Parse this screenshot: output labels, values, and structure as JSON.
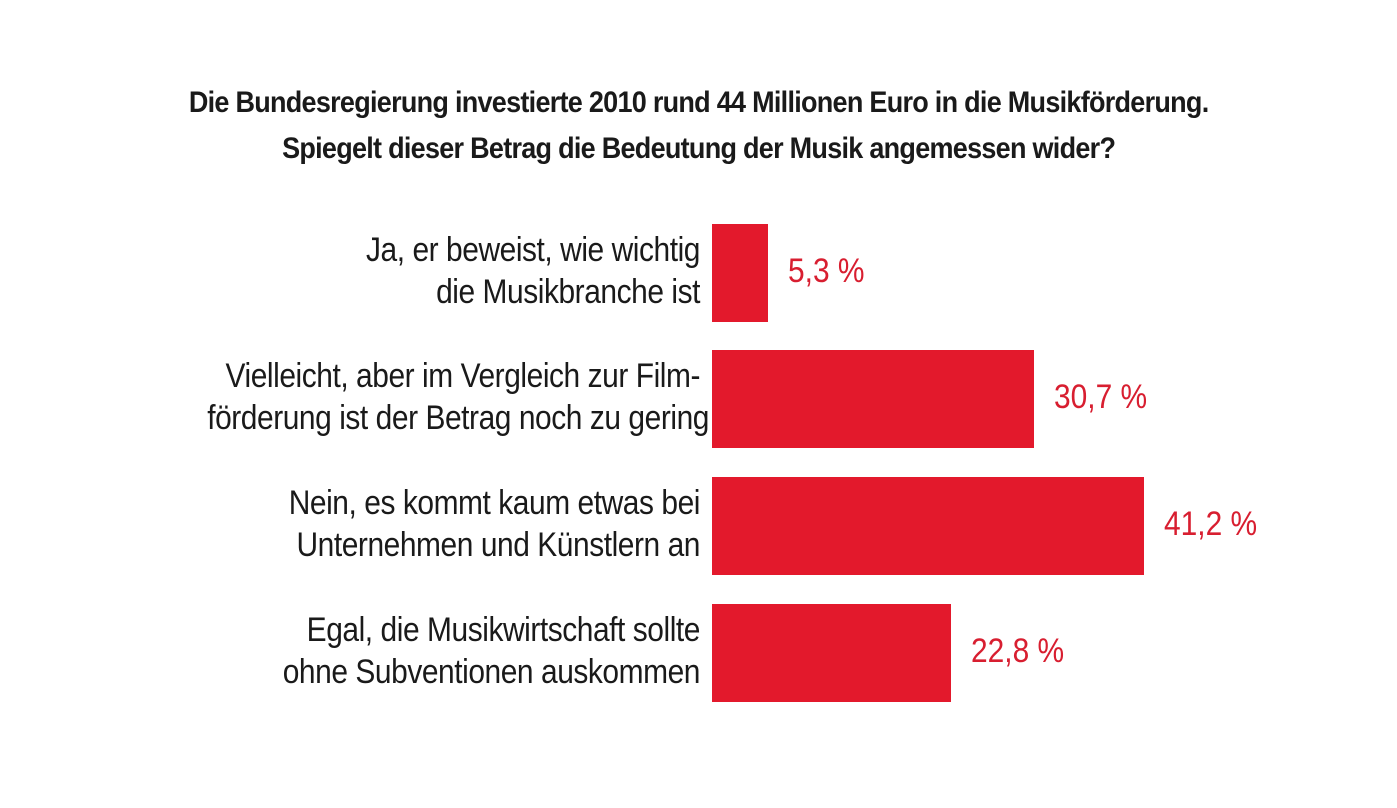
{
  "chart_data": {
    "type": "bar",
    "orientation": "horizontal",
    "title": [
      "Die Bundesregierung investierte 2010 rund 44 Millionen Euro in die Musikförderung.",
      "Spiegelt dieser Betrag die Bedeutung der Musik angemessen wider?"
    ],
    "categories": [
      [
        "Ja, er beweist, wie wichtig",
        "die Musikbranche ist"
      ],
      [
        "Vielleicht, aber im Vergleich zur Film-",
        "förderung ist der Betrag noch zu gering"
      ],
      [
        "Nein, es kommt kaum etwas bei",
        "Unternehmen und Künstlern an"
      ],
      [
        "Egal, die Musikwirtschaft sollte",
        "ohne Subventionen auskommen"
      ]
    ],
    "values": [
      5.3,
      30.7,
      41.2,
      22.8
    ],
    "value_labels": [
      "5,3 %",
      "30,7 %",
      "41,2 %",
      "22,8 %"
    ],
    "xlim": [
      0,
      41.2
    ],
    "grid": false,
    "bar_color": "#e3192c",
    "value_label_color": "#d81e30",
    "text_color": "#1a1a1a"
  }
}
